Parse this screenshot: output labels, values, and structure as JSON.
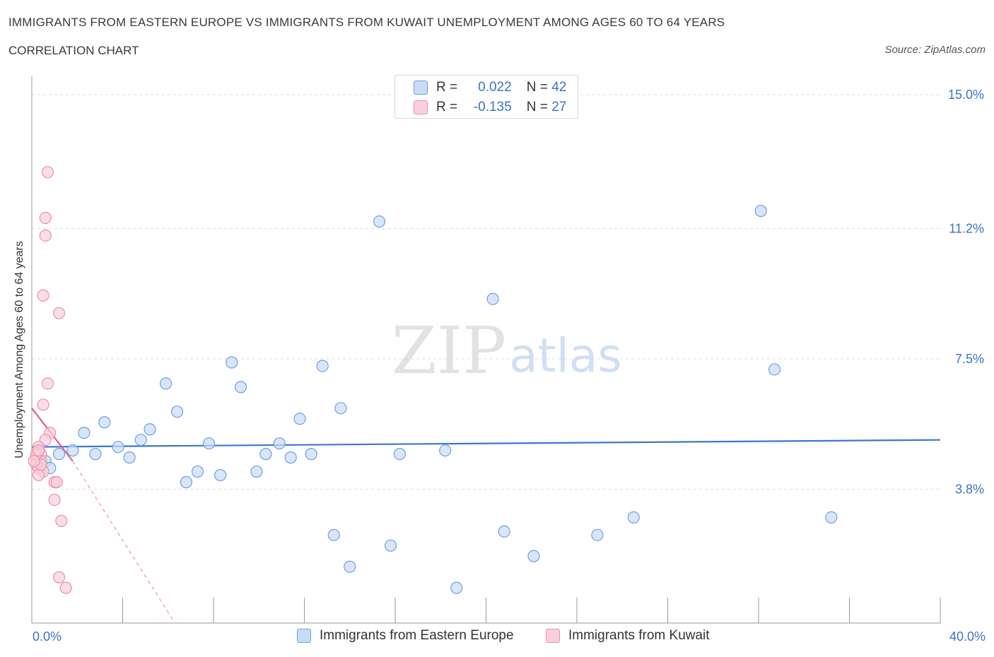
{
  "title": "IMMIGRANTS FROM EASTERN EUROPE VS IMMIGRANTS FROM KUWAIT UNEMPLOYMENT AMONG AGES 60 TO 64 YEARS",
  "subtitle": "CORRELATION CHART",
  "source": "Source: ZipAtlas.com",
  "watermark": {
    "zip": "ZIP",
    "atlas": "atlas"
  },
  "stats": [
    {
      "r_label": "R =",
      "r_value": "0.022",
      "n_label": "N =",
      "n_value": "42"
    },
    {
      "r_label": "R =",
      "r_value": "-0.135",
      "n_label": "N =",
      "n_value": "27"
    }
  ],
  "chart_data": {
    "type": "scatter",
    "xlabel": "",
    "ylabel": "Unemployment Among Ages 60 to 64 years",
    "xlim": [
      0,
      40
    ],
    "ylim": [
      0,
      15
    ],
    "x_tick_labels": {
      "min": "0.0%",
      "max": "40.0%"
    },
    "y_ticks": [
      {
        "value": 3.8,
        "label": "3.8%"
      },
      {
        "value": 7.5,
        "label": "7.5%"
      },
      {
        "value": 11.2,
        "label": "11.2%"
      },
      {
        "value": 15.0,
        "label": "15.0%"
      }
    ],
    "grid": true,
    "legend_position": "bottom",
    "series": [
      {
        "name": "Immigrants from Eastern Europe",
        "color": "#6f9fe0",
        "fill": "#c9dcf6",
        "trend": {
          "x0": 0,
          "y0": 5.0,
          "x1": 40,
          "y1": 5.2,
          "color": "#3a78cf"
        },
        "points": [
          [
            0.6,
            4.6
          ],
          [
            1.2,
            4.8
          ],
          [
            1.8,
            4.9
          ],
          [
            2.3,
            5.4
          ],
          [
            2.8,
            4.8
          ],
          [
            3.2,
            5.7
          ],
          [
            3.8,
            5.0
          ],
          [
            4.3,
            4.7
          ],
          [
            4.8,
            5.2
          ],
          [
            5.2,
            5.5
          ],
          [
            5.9,
            6.8
          ],
          [
            6.4,
            6.0
          ],
          [
            6.8,
            4.0
          ],
          [
            7.3,
            4.3
          ],
          [
            7.8,
            5.1
          ],
          [
            8.3,
            4.2
          ],
          [
            8.8,
            7.4
          ],
          [
            9.2,
            6.7
          ],
          [
            9.9,
            4.3
          ],
          [
            10.3,
            4.8
          ],
          [
            10.9,
            5.1
          ],
          [
            11.4,
            4.7
          ],
          [
            11.8,
            5.8
          ],
          [
            12.3,
            4.8
          ],
          [
            12.8,
            7.3
          ],
          [
            13.3,
            2.5
          ],
          [
            13.6,
            6.1
          ],
          [
            14.0,
            1.6
          ],
          [
            15.3,
            11.4
          ],
          [
            15.8,
            2.2
          ],
          [
            16.2,
            4.8
          ],
          [
            18.2,
            4.9
          ],
          [
            18.7,
            1.0
          ],
          [
            20.3,
            9.2
          ],
          [
            20.8,
            2.6
          ],
          [
            22.1,
            1.9
          ],
          [
            24.9,
            2.5
          ],
          [
            26.5,
            3.0
          ],
          [
            32.1,
            11.7
          ],
          [
            32.7,
            7.2
          ],
          [
            35.2,
            3.0
          ],
          [
            0.8,
            4.4
          ]
        ]
      },
      {
        "name": "Immigrants from Kuwait",
        "color": "#ec8fae",
        "fill": "#f8cfdc",
        "trend": {
          "x0": 0,
          "y0": 6.1,
          "x1": 1.8,
          "y1": 4.6,
          "color": "#e0608e"
        },
        "trend_dashed": {
          "x0": 1.8,
          "y0": 4.6,
          "x1": 6.3,
          "y1": 0.0,
          "color": "#ec8fae"
        },
        "points": [
          [
            0.7,
            12.8
          ],
          [
            0.6,
            11.5
          ],
          [
            0.6,
            11.0
          ],
          [
            0.5,
            9.3
          ],
          [
            1.2,
            8.8
          ],
          [
            0.7,
            6.8
          ],
          [
            0.5,
            6.2
          ],
          [
            0.8,
            5.4
          ],
          [
            0.6,
            5.2
          ],
          [
            0.3,
            5.0
          ],
          [
            0.4,
            4.8
          ],
          [
            0.2,
            4.7
          ],
          [
            0.4,
            4.6
          ],
          [
            0.2,
            4.5
          ],
          [
            0.3,
            4.4
          ],
          [
            0.5,
            4.3
          ],
          [
            0.3,
            4.2
          ],
          [
            1.0,
            4.0
          ],
          [
            1.1,
            4.0
          ],
          [
            1.0,
            3.5
          ],
          [
            1.3,
            2.9
          ],
          [
            1.2,
            1.3
          ],
          [
            1.5,
            1.0
          ],
          [
            0.2,
            4.8
          ],
          [
            0.4,
            4.5
          ],
          [
            0.1,
            4.6
          ],
          [
            0.3,
            4.9
          ]
        ]
      }
    ]
  }
}
